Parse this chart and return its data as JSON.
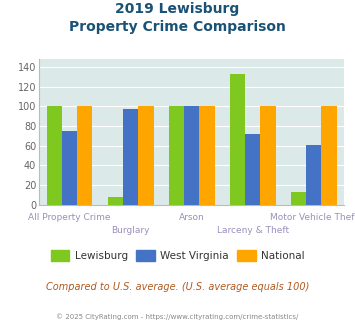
{
  "title_line1": "2019 Lewisburg",
  "title_line2": "Property Crime Comparison",
  "categories": [
    "All Property Crime",
    "Burglary",
    "Arson",
    "Larceny & Theft",
    "Motor Vehicle Theft"
  ],
  "lewisburg": [
    101,
    8,
    100,
    133,
    13
  ],
  "west_virginia": [
    75,
    97,
    100,
    72,
    61
  ],
  "national": [
    100,
    100,
    100,
    100,
    100
  ],
  "color_lewisburg": "#7ec820",
  "color_west_virginia": "#4472c4",
  "color_national": "#ffa500",
  "ylim": [
    0,
    148
  ],
  "yticks": [
    0,
    20,
    40,
    60,
    80,
    100,
    120,
    140
  ],
  "bg_color": "#dce9e9",
  "footer_text": "Compared to U.S. average. (U.S. average equals 100)",
  "footer_color": "#b05a20",
  "copyright_text": "© 2025 CityRating.com - https://www.cityrating.com/crime-statistics/",
  "copyright_color": "#888888",
  "title_color": "#1a5276",
  "xlabel_color": "#9b8fbb",
  "ytick_color": "#666666",
  "bar_width": 0.25,
  "xlabel_row1": [
    0,
    2,
    4
  ],
  "xlabel_row1_labels": [
    "All Property Crime",
    "Arson",
    "Motor Vehicle Theft"
  ],
  "xlabel_row2": [
    1,
    3
  ],
  "xlabel_row2_labels": [
    "Burglary",
    "Larceny & Theft"
  ]
}
